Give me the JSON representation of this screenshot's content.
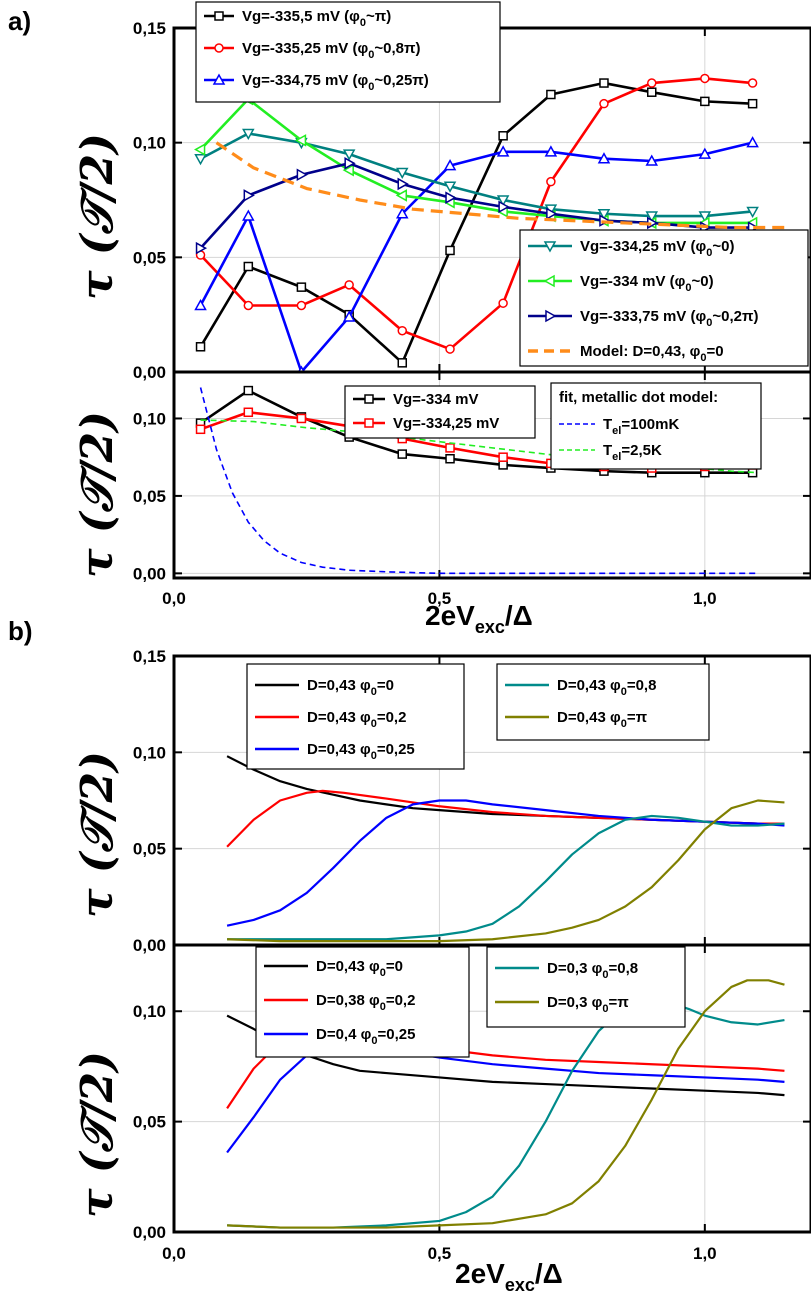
{
  "figure": {
    "label_a": "a)",
    "label_b": "b)",
    "ylabel": "τ (𝒯/2)",
    "xlabel_main": "2eV",
    "xlabel_sub": "exc",
    "xlabel_tail": "/Δ"
  },
  "chart_data": [
    {
      "id": "a_top",
      "type": "line",
      "xlim": [
        0,
        1.2
      ],
      "ylim": [
        0,
        0.15
      ],
      "yticks": [
        "0,00",
        "0,05",
        "0,10",
        "0,15"
      ],
      "ytick_values": [
        0,
        0.05,
        0.1,
        0.15
      ],
      "xticks": [],
      "legend_placement": "top-left / bottom-right",
      "series": [
        {
          "name": "Vg=-335,5 mV (φ0~π)",
          "label": "Vg=-335,5 mV (φ",
          "label_sub": "0",
          "label_tail": "~π)",
          "color": "#000000",
          "marker": "square",
          "group": "tl",
          "x": [
            0.05,
            0.14,
            0.24,
            0.33,
            0.43,
            0.52,
            0.62,
            0.71,
            0.81,
            0.9,
            1.0,
            1.09
          ],
          "y": [
            0.011,
            0.046,
            0.037,
            0.025,
            0.004,
            0.053,
            0.103,
            0.121,
            0.126,
            0.122,
            0.118,
            0.117
          ]
        },
        {
          "name": "Vg=-335,25 mV (φ0~0,8π)",
          "label": "Vg=-335,25 mV (φ",
          "label_sub": "0",
          "label_tail": "~0,8π)",
          "color": "#ff0000",
          "marker": "circle",
          "group": "tl",
          "x": [
            0.05,
            0.14,
            0.24,
            0.33,
            0.43,
            0.52,
            0.62,
            0.71,
            0.81,
            0.9,
            1.0,
            1.09
          ],
          "y": [
            0.051,
            0.029,
            0.029,
            0.038,
            0.018,
            0.01,
            0.03,
            0.083,
            0.117,
            0.126,
            0.128,
            0.126
          ]
        },
        {
          "name": "Vg=-334,75 mV (φ0~0,25π)",
          "label": "Vg=-334,75 mV (φ",
          "label_sub": "0",
          "label_tail": "~0,25π)",
          "color": "#0000ff",
          "marker": "triangle-up",
          "group": "tl",
          "x": [
            0.05,
            0.14,
            0.24,
            0.33,
            0.43,
            0.52,
            0.62,
            0.71,
            0.81,
            0.9,
            1.0,
            1.09
          ],
          "y": [
            0.029,
            0.068,
            0.0,
            0.024,
            0.069,
            0.09,
            0.096,
            0.096,
            0.093,
            0.092,
            0.095,
            0.1
          ]
        },
        {
          "name": "Vg=-334,25 mV (φ0~0)",
          "label": "Vg=-334,25 mV (φ",
          "label_sub": "0",
          "label_tail": "~0)",
          "color": "#008080",
          "marker": "triangle-down",
          "group": "br",
          "x": [
            0.05,
            0.14,
            0.24,
            0.33,
            0.43,
            0.52,
            0.62,
            0.71,
            0.81,
            0.9,
            1.0,
            1.09
          ],
          "y": [
            0.093,
            0.104,
            0.1,
            0.095,
            0.087,
            0.081,
            0.075,
            0.071,
            0.069,
            0.068,
            0.068,
            0.07
          ]
        },
        {
          "name": "Vg=-334 mV (φ0~0)",
          "label": "Vg=-334 mV (φ",
          "label_sub": "0",
          "label_tail": "~0)",
          "color": "#22ee22",
          "marker": "triangle-left",
          "group": "br",
          "x": [
            0.05,
            0.14,
            0.24,
            0.33,
            0.43,
            0.52,
            0.62,
            0.71,
            0.81,
            0.9,
            1.0,
            1.09
          ],
          "y": [
            0.097,
            0.119,
            0.101,
            0.088,
            0.077,
            0.074,
            0.07,
            0.068,
            0.066,
            0.065,
            0.065,
            0.065
          ]
        },
        {
          "name": "Vg=-333,75 mV (φ0~0,2π)",
          "label": "Vg=-333,75 mV (φ",
          "label_sub": "0",
          "label_tail": "~0,2π)",
          "color": "#00008b",
          "marker": "triangle-right",
          "group": "br",
          "x": [
            0.05,
            0.14,
            0.24,
            0.33,
            0.43,
            0.52,
            0.62,
            0.71,
            0.81,
            0.9,
            1.0,
            1.09
          ],
          "y": [
            0.054,
            0.077,
            0.086,
            0.091,
            0.082,
            0.076,
            0.072,
            0.069,
            0.066,
            0.065,
            0.063,
            0.063
          ]
        },
        {
          "name": "Model: D=0,43, φ0=0",
          "label": "Model: D=0,43, φ",
          "label_sub": "0",
          "label_tail": "=0",
          "color": "#ff8c1a",
          "marker": "none",
          "dash": "12,7",
          "group": "br",
          "x": [
            0.08,
            0.15,
            0.25,
            0.35,
            0.45,
            0.55,
            0.65,
            0.75,
            0.85,
            0.95,
            1.05,
            1.15
          ],
          "y": [
            0.1,
            0.089,
            0.08,
            0.075,
            0.071,
            0.069,
            0.067,
            0.066,
            0.065,
            0.064,
            0.063,
            0.063
          ]
        }
      ]
    },
    {
      "id": "a_bottom",
      "type": "line",
      "xlim": [
        0,
        1.2
      ],
      "ylim": [
        -0.003,
        0.13
      ],
      "yticks": [
        "0,00",
        "0,05",
        "0,10"
      ],
      "ytick_values": [
        0,
        0.05,
        0.1
      ],
      "xticks": [
        "0,0",
        "0,5",
        "1,0"
      ],
      "xtick_values": [
        0,
        0.5,
        1.0
      ],
      "legend_title": "fit, metallic dot model:",
      "series": [
        {
          "name": "Vg=-334 mV",
          "label": "Vg=-334 mV",
          "color": "#000000",
          "marker": "square",
          "group": "l",
          "x": [
            0.05,
            0.14,
            0.24,
            0.33,
            0.43,
            0.52,
            0.62,
            0.71,
            0.81,
            0.9,
            1.0,
            1.09
          ],
          "y": [
            0.097,
            0.118,
            0.101,
            0.088,
            0.077,
            0.074,
            0.07,
            0.068,
            0.066,
            0.065,
            0.065,
            0.065
          ]
        },
        {
          "name": "Vg=-334,25 mV",
          "label": "Vg=-334,25 mV",
          "color": "#ff0000",
          "marker": "square",
          "group": "l",
          "x": [
            0.05,
            0.14,
            0.24,
            0.33,
            0.43,
            0.52,
            0.62,
            0.71,
            0.81,
            0.9,
            1.0,
            1.09
          ],
          "y": [
            0.093,
            0.104,
            0.1,
            0.095,
            0.087,
            0.081,
            0.075,
            0.071,
            0.069,
            0.068,
            0.069,
            0.07
          ]
        },
        {
          "name": "Tel=100mK",
          "label": "T",
          "label_sub": "el",
          "label_tail": "=100mK",
          "color": "#0000ff",
          "marker": "none",
          "dash": "6,4",
          "group": "r",
          "x": [
            0.05,
            0.08,
            0.11,
            0.14,
            0.17,
            0.2,
            0.24,
            0.28,
            0.33,
            0.4,
            0.5,
            0.6,
            0.8,
            1.0,
            1.1
          ],
          "y": [
            0.12,
            0.08,
            0.052,
            0.033,
            0.021,
            0.013,
            0.007,
            0.004,
            0.002,
            0.001,
            0.0,
            0.0,
            0.0,
            0.0,
            0.0
          ]
        },
        {
          "name": "Tel=2,5K",
          "label": "T",
          "label_sub": "el",
          "label_tail": "=2,5K",
          "color": "#22ee22",
          "marker": "none",
          "dash": "6,4",
          "group": "r",
          "x": [
            0.05,
            0.15,
            0.25,
            0.35,
            0.45,
            0.55,
            0.65,
            0.75,
            0.85,
            0.95,
            1.05,
            1.1
          ],
          "y": [
            0.099,
            0.098,
            0.094,
            0.091,
            0.087,
            0.083,
            0.079,
            0.075,
            0.072,
            0.069,
            0.066,
            0.065
          ]
        }
      ]
    },
    {
      "id": "b_top",
      "type": "line",
      "xlim": [
        0,
        1.2
      ],
      "ylim": [
        0,
        0.15
      ],
      "yticks": [
        "0,00",
        "0,05",
        "0,10",
        "0,15"
      ],
      "ytick_values": [
        0,
        0.05,
        0.1,
        0.15
      ],
      "xticks": [],
      "series": [
        {
          "name": "D=0,43 φ0=0",
          "label": "D=0,43   φ",
          "label_sub": "0",
          "label_tail": "=0",
          "color": "#000000",
          "group": "l",
          "x": [
            0.1,
            0.15,
            0.2,
            0.25,
            0.3,
            0.35,
            0.4,
            0.45,
            0.5,
            0.6,
            0.7,
            0.8,
            0.9,
            1.0,
            1.1,
            1.15
          ],
          "y": [
            0.098,
            0.091,
            0.085,
            0.081,
            0.078,
            0.075,
            0.073,
            0.071,
            0.07,
            0.068,
            0.067,
            0.066,
            0.065,
            0.064,
            0.063,
            0.063
          ]
        },
        {
          "name": "D=0,43 φ0=0,2",
          "label": "D=0,43   φ",
          "label_sub": "0",
          "label_tail": "=0,2",
          "color": "#ff0000",
          "group": "l",
          "x": [
            0.1,
            0.15,
            0.2,
            0.25,
            0.28,
            0.32,
            0.4,
            0.5,
            0.6,
            0.7,
            0.8,
            0.9,
            1.0,
            1.1,
            1.15
          ],
          "y": [
            0.051,
            0.065,
            0.075,
            0.079,
            0.08,
            0.079,
            0.076,
            0.072,
            0.069,
            0.067,
            0.066,
            0.065,
            0.064,
            0.063,
            0.063
          ]
        },
        {
          "name": "D=0,43 φ0=0,25",
          "label": "D=0,43   φ",
          "label_sub": "0",
          "label_tail": "=0,25",
          "color": "#0000ff",
          "group": "l",
          "x": [
            0.1,
            0.15,
            0.2,
            0.25,
            0.3,
            0.35,
            0.4,
            0.45,
            0.5,
            0.55,
            0.6,
            0.7,
            0.8,
            0.9,
            1.0,
            1.1,
            1.15
          ],
          "y": [
            0.01,
            0.013,
            0.018,
            0.027,
            0.04,
            0.054,
            0.066,
            0.073,
            0.075,
            0.075,
            0.073,
            0.07,
            0.067,
            0.065,
            0.064,
            0.063,
            0.062
          ]
        },
        {
          "name": "D=0,43 φ0=0,8",
          "label": "D=0,43   φ",
          "label_sub": "0",
          "label_tail": "=0,8",
          "color": "#008b8b",
          "group": "r",
          "x": [
            0.1,
            0.2,
            0.3,
            0.4,
            0.5,
            0.55,
            0.6,
            0.65,
            0.7,
            0.75,
            0.8,
            0.85,
            0.9,
            0.95,
            1.0,
            1.05,
            1.1,
            1.15
          ],
          "y": [
            0.003,
            0.003,
            0.003,
            0.003,
            0.005,
            0.007,
            0.011,
            0.02,
            0.033,
            0.047,
            0.058,
            0.065,
            0.067,
            0.066,
            0.064,
            0.062,
            0.062,
            0.063
          ]
        },
        {
          "name": "D=0,43 φ0=π",
          "label": "D=0,43   φ",
          "label_sub": "0",
          "label_tail": "=π",
          "color": "#808000",
          "group": "r",
          "x": [
            0.1,
            0.2,
            0.3,
            0.4,
            0.5,
            0.6,
            0.7,
            0.75,
            0.8,
            0.85,
            0.9,
            0.95,
            1.0,
            1.05,
            1.1,
            1.15
          ],
          "y": [
            0.003,
            0.002,
            0.002,
            0.002,
            0.002,
            0.003,
            0.006,
            0.009,
            0.013,
            0.02,
            0.03,
            0.044,
            0.06,
            0.071,
            0.075,
            0.074
          ]
        }
      ]
    },
    {
      "id": "b_bottom",
      "type": "line",
      "xlim": [
        0,
        1.2
      ],
      "ylim": [
        0,
        0.13
      ],
      "yticks": [
        "0,00",
        "0,05",
        "0,10"
      ],
      "ytick_values": [
        0,
        0.05,
        0.1
      ],
      "xticks": [
        "0,0",
        "0,5",
        "1,0"
      ],
      "xtick_values": [
        0,
        0.5,
        1.0
      ],
      "series": [
        {
          "name": "D=0,43 φ0=0",
          "label": "D=0,43   φ",
          "label_sub": "0",
          "label_tail": "=0",
          "color": "#000000",
          "group": "l",
          "x": [
            0.1,
            0.15,
            0.2,
            0.25,
            0.3,
            0.35,
            0.4,
            0.5,
            0.6,
            0.7,
            0.8,
            0.9,
            1.0,
            1.1,
            1.15
          ],
          "y": [
            0.098,
            0.092,
            0.085,
            0.08,
            0.076,
            0.073,
            0.072,
            0.07,
            0.068,
            0.067,
            0.066,
            0.065,
            0.064,
            0.063,
            0.062
          ]
        },
        {
          "name": "D=0,38 φ0=0,2",
          "label": "D=0,38   φ",
          "label_sub": "0",
          "label_tail": "=0,2",
          "color": "#ff0000",
          "group": "l",
          "x": [
            0.1,
            0.15,
            0.2,
            0.25,
            0.28,
            0.32,
            0.4,
            0.5,
            0.6,
            0.7,
            0.8,
            0.9,
            1.0,
            1.1,
            1.15
          ],
          "y": [
            0.056,
            0.074,
            0.086,
            0.091,
            0.092,
            0.091,
            0.087,
            0.083,
            0.08,
            0.078,
            0.077,
            0.076,
            0.075,
            0.074,
            0.073
          ]
        },
        {
          "name": "D=0,4 φ0=0,25",
          "label": "D=0,4    φ",
          "label_sub": "0",
          "label_tail": "=0,25",
          "color": "#0000ff",
          "group": "l",
          "x": [
            0.1,
            0.15,
            0.2,
            0.25,
            0.3,
            0.35,
            0.4,
            0.5,
            0.6,
            0.7,
            0.8,
            0.9,
            1.0,
            1.1,
            1.15
          ],
          "y": [
            0.036,
            0.052,
            0.069,
            0.08,
            0.084,
            0.085,
            0.083,
            0.079,
            0.076,
            0.074,
            0.072,
            0.071,
            0.07,
            0.069,
            0.068
          ]
        },
        {
          "name": "D=0,3 φ0=0,8",
          "label": "D=0,3   φ",
          "label_sub": "0",
          "label_tail": "=0,8",
          "color": "#008b8b",
          "group": "r",
          "x": [
            0.1,
            0.2,
            0.3,
            0.4,
            0.5,
            0.55,
            0.6,
            0.65,
            0.7,
            0.75,
            0.8,
            0.85,
            0.88,
            0.92,
            0.97,
            1.0,
            1.05,
            1.1,
            1.15
          ],
          "y": [
            0.003,
            0.002,
            0.002,
            0.003,
            0.005,
            0.009,
            0.016,
            0.03,
            0.05,
            0.073,
            0.091,
            0.102,
            0.106,
            0.105,
            0.101,
            0.098,
            0.095,
            0.094,
            0.096
          ]
        },
        {
          "name": "D=0,3 φ0=π",
          "label": "D=0,3   φ",
          "label_sub": "0",
          "label_tail": "=π",
          "color": "#808000",
          "group": "r",
          "x": [
            0.1,
            0.2,
            0.3,
            0.4,
            0.5,
            0.6,
            0.7,
            0.75,
            0.8,
            0.85,
            0.9,
            0.95,
            1.0,
            1.05,
            1.08,
            1.12,
            1.15
          ],
          "y": [
            0.003,
            0.002,
            0.002,
            0.002,
            0.003,
            0.004,
            0.008,
            0.013,
            0.023,
            0.039,
            0.06,
            0.083,
            0.1,
            0.111,
            0.114,
            0.114,
            0.112
          ]
        }
      ]
    }
  ]
}
